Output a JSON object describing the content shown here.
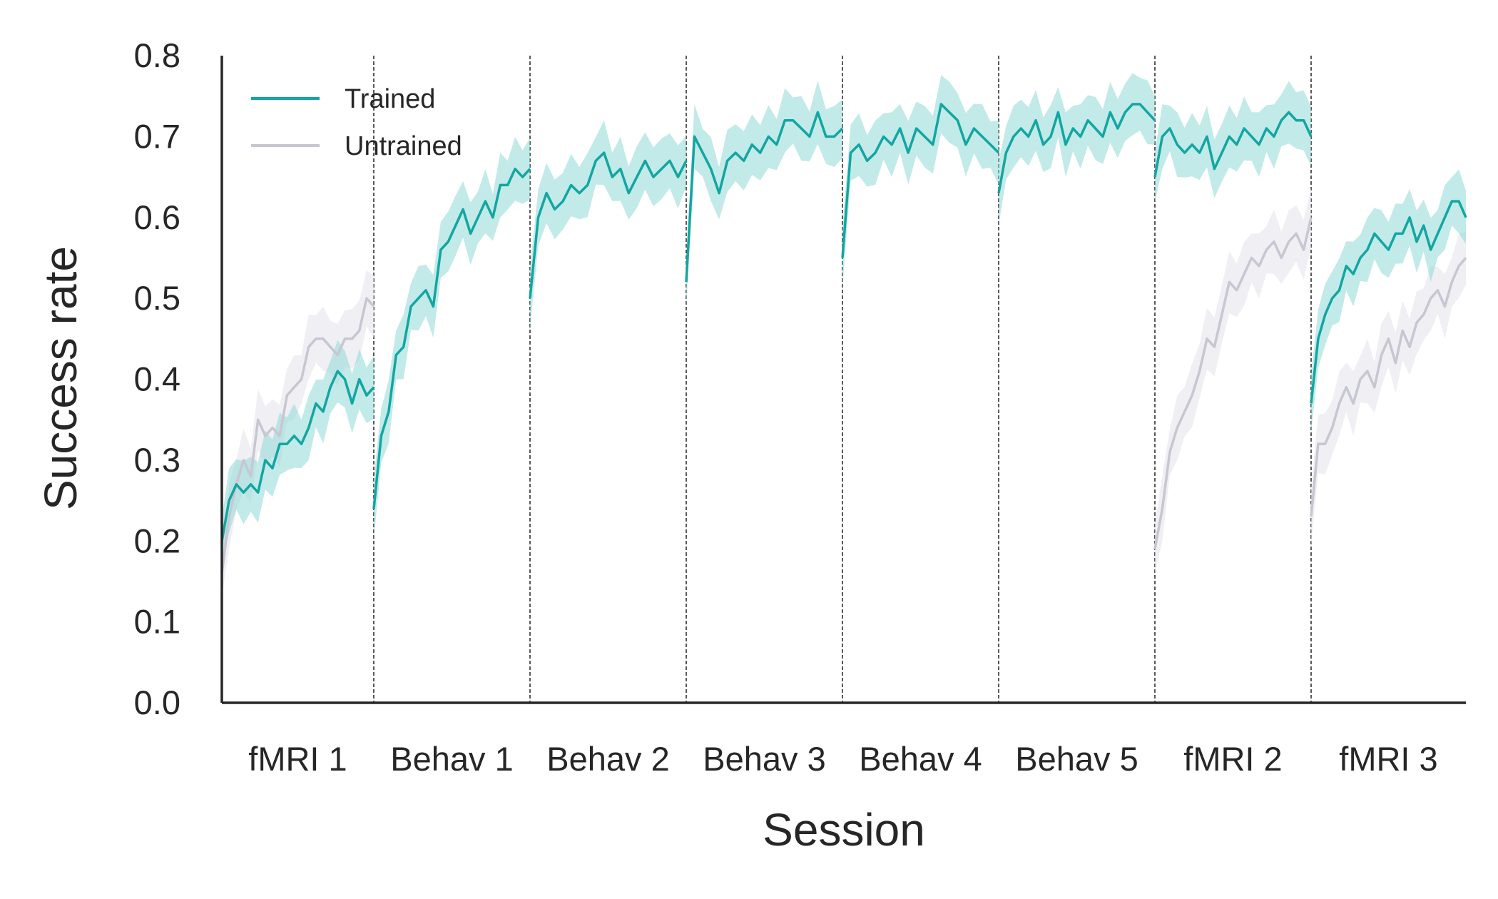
{
  "chart_data": {
    "type": "line",
    "xlabel": "Session",
    "ylabel": "Success rate",
    "ylim": [
      0,
      0.8
    ],
    "yticks": [
      "0.0",
      "0.1",
      "0.2",
      "0.3",
      "0.4",
      "0.5",
      "0.6",
      "0.7",
      "0.8"
    ],
    "grid": false,
    "legend_position": "top-left",
    "sessions": [
      "fMRI 1",
      "Behav 1",
      "Behav 2",
      "Behav 3",
      "Behav 4",
      "Behav 5",
      "fMRI 2",
      "fMRI 3"
    ],
    "series": [
      {
        "name": "Trained",
        "color": "#12a6a2",
        "band_color": "#8fd8d6",
        "values": [
          [
            0.2,
            0.25,
            0.27,
            0.26,
            0.27,
            0.26,
            0.3,
            0.29,
            0.32,
            0.32,
            0.33,
            0.32,
            0.34,
            0.37,
            0.36,
            0.39,
            0.41,
            0.4,
            0.37,
            0.4,
            0.38,
            0.39
          ],
          [
            0.24,
            0.33,
            0.36,
            0.43,
            0.44,
            0.49,
            0.5,
            0.51,
            0.49,
            0.56,
            0.57,
            0.59,
            0.61,
            0.58,
            0.6,
            0.62,
            0.6,
            0.64,
            0.64,
            0.66,
            0.65,
            0.66
          ],
          [
            0.5,
            0.6,
            0.63,
            0.61,
            0.62,
            0.64,
            0.63,
            0.64,
            0.67,
            0.68,
            0.65,
            0.66,
            0.63,
            0.65,
            0.67,
            0.65,
            0.66,
            0.67,
            0.65,
            0.67
          ],
          [
            0.52,
            0.7,
            0.68,
            0.66,
            0.63,
            0.67,
            0.68,
            0.67,
            0.69,
            0.68,
            0.7,
            0.69,
            0.72,
            0.72,
            0.71,
            0.7,
            0.73,
            0.7,
            0.7,
            0.71
          ],
          [
            0.55,
            0.68,
            0.69,
            0.67,
            0.68,
            0.7,
            0.69,
            0.71,
            0.68,
            0.71,
            0.7,
            0.69,
            0.74,
            0.73,
            0.72,
            0.69,
            0.71,
            0.7,
            0.69,
            0.68
          ],
          [
            0.63,
            0.68,
            0.7,
            0.71,
            0.7,
            0.72,
            0.69,
            0.7,
            0.73,
            0.69,
            0.71,
            0.7,
            0.72,
            0.71,
            0.7,
            0.73,
            0.71,
            0.73,
            0.74,
            0.74,
            0.73,
            0.72
          ],
          [
            0.65,
            0.7,
            0.71,
            0.69,
            0.68,
            0.69,
            0.68,
            0.7,
            0.66,
            0.68,
            0.7,
            0.69,
            0.71,
            0.7,
            0.69,
            0.71,
            0.7,
            0.72,
            0.73,
            0.72,
            0.72,
            0.7
          ],
          [
            0.37,
            0.45,
            0.48,
            0.5,
            0.51,
            0.54,
            0.53,
            0.55,
            0.56,
            0.58,
            0.57,
            0.56,
            0.58,
            0.58,
            0.6,
            0.57,
            0.59,
            0.56,
            0.58,
            0.6,
            0.62,
            0.62,
            0.6
          ]
        ]
      },
      {
        "name": "Untrained",
        "color": "#c7c7d2",
        "band_color": "#e4e4ec",
        "values": [
          [
            0.16,
            0.23,
            0.27,
            0.3,
            0.28,
            0.35,
            0.33,
            0.34,
            0.33,
            0.38,
            0.39,
            0.4,
            0.44,
            0.45,
            0.45,
            0.44,
            0.43,
            0.45,
            0.45,
            0.46,
            0.5,
            0.49
          ],
          null,
          null,
          null,
          null,
          null,
          [
            0.19,
            0.24,
            0.31,
            0.34,
            0.36,
            0.38,
            0.41,
            0.45,
            0.44,
            0.48,
            0.52,
            0.51,
            0.53,
            0.55,
            0.54,
            0.56,
            0.57,
            0.55,
            0.57,
            0.58,
            0.56,
            0.6
          ],
          [
            0.23,
            0.32,
            0.32,
            0.34,
            0.37,
            0.39,
            0.37,
            0.4,
            0.41,
            0.39,
            0.43,
            0.45,
            0.42,
            0.46,
            0.44,
            0.47,
            0.48,
            0.5,
            0.51,
            0.49,
            0.52,
            0.54,
            0.55
          ]
        ]
      }
    ]
  }
}
